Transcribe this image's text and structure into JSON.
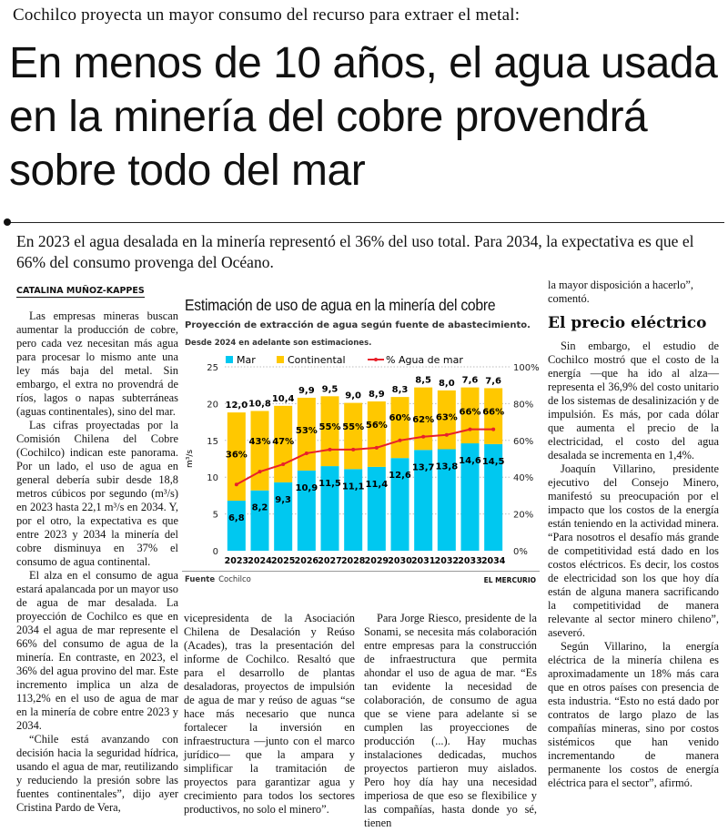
{
  "kicker": "Cochilco proyecta un mayor consumo del recurso para extraer el metal:",
  "headline": "En menos de 10 años, el agua usada en la minería del cobre provendrá sobre todo del mar",
  "deck": "En 2023 el agua desalada en la minería representó el 36% del uso total. Para 2034, la expectativa es que el 66% del consumo provenga del Océano.",
  "byline": "CATALINA MUÑOZ-KAPPES",
  "columns": {
    "c1": [
      "Las empresas mineras buscan aumentar la producción de cobre, pero cada vez necesitan más agua para procesar lo mismo ante una ley más baja del metal. Sin embargo, el extra no provendrá de ríos, lagos o napas subterráneas (aguas continentales), sino del mar.",
      "Las cifras proyectadas por la Comisión Chilena del Cobre (Cochilco) indican este panorama. Por un lado, el uso de agua en general debería subir desde 18,8 metros cúbicos por segundo (m³/s) en 2023 hasta 22,1 m³/s en 2034. Y, por el otro, la expectativa es que entre 2023 y 2034 la minería del cobre disminuya en 37% el consumo de agua continental.",
      "El alza en el consumo de agua estará apalancada por un mayor uso de agua de mar desalada. La proyección de Cochilco es que en 2034 el agua de mar represente el 66% del consumo de agua de la minería. En contraste, en 2023, el 36% del agua provino del mar. Este incremento implica un alza de 113,2% en el uso de agua de mar en la minería de cobre entre 2023 y 2034.",
      "“Chile está avanzando con decisión hacia la seguridad hídrica, usando el agua de mar, reutilizando y reduciendo la presión sobre las fuentes continentales”, dijo ayer Cristina Pardo de Vera,"
    ],
    "c2": [
      "vicepresidenta de la Asociación Chilena de Desalación y Reúso (Acades), tras la presentación del informe de Cochilco. Resaltó que para el desarrollo de plantas desaladoras, proyectos de impulsión de agua de mar y reúso de aguas “se hace más necesario que nunca fortalecer la inversión en infraestructura —junto con el marco jurídico— que la ampara y simplificar la tramitación de proyectos para garantizar agua y crecimiento para todos los sectores productivos, no solo el minero”."
    ],
    "c3": [
      "Para Jorge Riesco, presidente de la Sonami, se necesita más colaboración entre empresas para la construcción de infraestructura que permita ahondar el uso de agua de mar. “Es tan evidente la necesidad de colaboración, de consumo de agua que se viene para adelante si se cumplen las proyecciones de producción (...). Hay muchas instalaciones dedicadas, muchos proyectos partieron muy aislados. Pero hoy día hay una necesidad imperiosa de que eso se flexibilice y las compañías, hasta donde yo sé, tienen"
    ],
    "c4_lead": "la mayor disposición a hacerlo”, comentó.",
    "c4_heading": "El precio eléctrico",
    "c4": [
      "Sin embargo, el estudio de Cochilco mostró que el costo de la energía —que ha ido al alza— representa el 36,9% del costo unitario de los sistemas de desalinización y de impulsión. Es más, por cada dólar que aumenta el precio de la electricidad, el costo del agua desalada se incrementa en 1,4%.",
      "Joaquín Villarino, presidente ejecutivo del Consejo Minero, manifestó su preocupación por el impacto que los costos de la energía están teniendo en la actividad minera. “Para nosotros el desafío más grande de competitividad está dado en los costos eléctricos. Es decir, los costos de electricidad son los que hoy día están de alguna manera sacrificando la competitividad de manera relevante al sector minero chileno”, aseveró.",
      "Según Villarino, la energía eléctrica de la minería chilena es aproximadamente un 18% más cara que en otros países con presencia de esta industria. “Esto no está dado por contratos de largo plazo de las compañías mineras, sino por costos sistémicos que han venido incrementando de manera permanente los costos de energía eléctrica para el sector”, afirmó."
    ]
  },
  "chart_data": {
    "type": "bar",
    "stacked": true,
    "title": "Estimación de uso de agua en la minería del cobre",
    "subtitle": "Proyección de extracción de agua según fuente de abastecimiento.",
    "note": "Desde 2024 en adelante son estimaciones.",
    "ylabel": "m³/s",
    "ylim": [
      0,
      25
    ],
    "yticks": [
      "0",
      "5",
      "10",
      "15",
      "20",
      "25"
    ],
    "y2lim": [
      0,
      100
    ],
    "y2ticks": [
      "0%",
      "20%",
      "40%",
      "60%",
      "80%",
      "100%"
    ],
    "categories": [
      "2023",
      "2024",
      "2025",
      "2026",
      "2027",
      "2028",
      "2029",
      "2030",
      "2031",
      "2032",
      "2033",
      "2034"
    ],
    "series": [
      {
        "name": "Mar",
        "color": "#00c8f0",
        "values": [
          6.8,
          8.2,
          9.3,
          10.9,
          11.5,
          11.1,
          11.4,
          12.6,
          13.7,
          13.8,
          14.6,
          14.5
        ],
        "labels": [
          "6,8",
          "8,2",
          "9,3",
          "10,9",
          "11,5",
          "11,1",
          "11,4",
          "12,6",
          "13,7",
          "13,8",
          "14,6",
          "14,5"
        ]
      },
      {
        "name": "Continental",
        "color": "#ffc800",
        "values": [
          12.0,
          10.8,
          10.4,
          9.9,
          9.5,
          9.0,
          8.9,
          8.3,
          8.5,
          8.0,
          7.6,
          7.6
        ],
        "labels": [
          "12,0",
          "10,8",
          "10,4",
          "9,9",
          "9,5",
          "9,0",
          "8,9",
          "8,3",
          "8,5",
          "8,0",
          "7,6",
          "7,6"
        ]
      },
      {
        "name": "% Agua de mar",
        "type": "line",
        "axis": "right",
        "color": "#e8202a",
        "values": [
          36,
          43,
          47,
          53,
          55,
          55,
          56,
          60,
          62,
          63,
          66,
          66
        ],
        "labels": [
          "36%",
          "43%",
          "47%",
          "53%",
          "55%",
          "55%",
          "56%",
          "60%",
          "62%",
          "63%",
          "66%",
          "66%"
        ]
      }
    ],
    "grid": true,
    "legend": "top",
    "source_label": "Fuente",
    "source": "Cochilco",
    "credit": "EL MERCURIO"
  }
}
